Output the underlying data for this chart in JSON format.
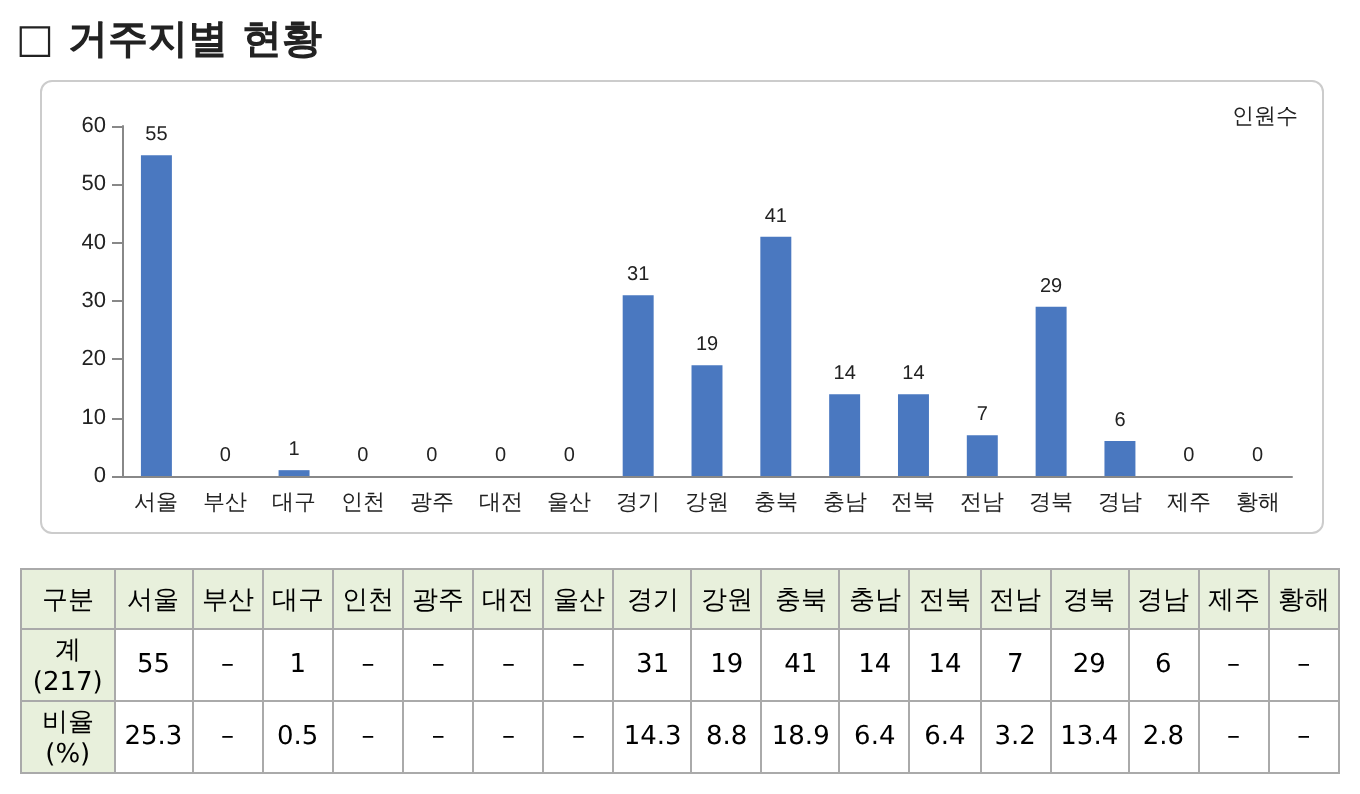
{
  "chart_data": [
    {
      "type": "bar",
      "title": "□ 거주지별 현황",
      "categories": [
        "서울",
        "부산",
        "대구",
        "인천",
        "광주",
        "대전",
        "울산",
        "경기",
        "강원",
        "충북",
        "충남",
        "전북",
        "전남",
        "경북",
        "경남",
        "제주",
        "황해"
      ],
      "values": [
        55,
        0,
        1,
        0,
        0,
        0,
        0,
        31,
        19,
        41,
        14,
        14,
        7,
        29,
        6,
        0,
        0
      ],
      "color": "#4a78c0",
      "ylim": [
        0,
        60
      ],
      "yticks": [
        0,
        10,
        20,
        30,
        40,
        50,
        60
      ],
      "grid": false,
      "data_labels": true,
      "annotations": [
        "인원수"
      ]
    },
    {
      "type": "other",
      "xlabel": "구분",
      "categories": [
        "서울",
        "부산",
        "대구",
        "인천",
        "광주",
        "대전",
        "울산",
        "경기",
        "강원",
        "충북",
        "충남",
        "전북",
        "전남",
        "경북",
        "경남",
        "제주",
        "황해"
      ],
      "series": [
        {
          "name": "계\n(217)",
          "values": [
            55,
            null,
            1,
            null,
            null,
            null,
            null,
            31,
            19,
            41,
            14,
            14,
            7,
            29,
            6,
            null,
            null
          ],
          "value_labels": [
            "55",
            "–",
            "1",
            "–",
            "–",
            "–",
            "–",
            "31",
            "19",
            "41",
            "14",
            "14",
            "7",
            "29",
            "6",
            "–",
            "–"
          ]
        },
        {
          "name": "비율\n(%)",
          "values": [
            25.3,
            null,
            0.5,
            null,
            null,
            null,
            null,
            14.3,
            8.8,
            18.9,
            6.4,
            6.4,
            3.2,
            13.4,
            2.8,
            null,
            null
          ],
          "value_labels": [
            "25.3",
            "–",
            "0.5",
            "–",
            "–",
            "–",
            "–",
            "14.3",
            "8.8",
            "18.9",
            "6.4",
            "6.4",
            "3.2",
            "13.4",
            "2.8",
            "–",
            "–"
          ]
        }
      ]
    }
  ]
}
